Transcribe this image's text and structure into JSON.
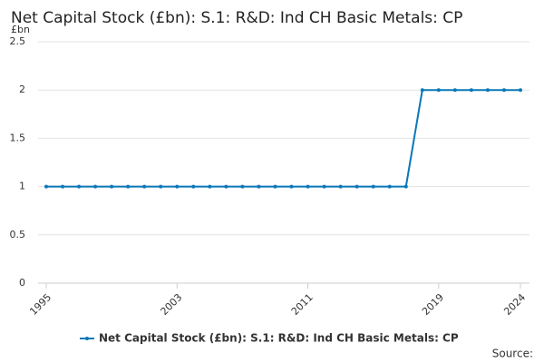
{
  "chart_data": {
    "type": "line",
    "title": "Net Capital Stock (£bn): S.1: R&D: Ind CH Basic Metals: CP",
    "y_label": "£bn",
    "source": "Source:",
    "x": [
      1995,
      1996,
      1997,
      1998,
      1999,
      2000,
      2001,
      2002,
      2003,
      2004,
      2005,
      2006,
      2007,
      2008,
      2009,
      2010,
      2011,
      2012,
      2013,
      2014,
      2015,
      2016,
      2017,
      2018,
      2019,
      2020,
      2021,
      2022,
      2023,
      2024
    ],
    "series": [
      {
        "name": "Net Capital Stock (£bn): S.1: R&D: Ind CH Basic Metals: CP",
        "color": "#0a78b8",
        "values": [
          1,
          1,
          1,
          1,
          1,
          1,
          1,
          1,
          1,
          1,
          1,
          1,
          1,
          1,
          1,
          1,
          1,
          1,
          1,
          1,
          1,
          1,
          1,
          2,
          2,
          2,
          2,
          2,
          2,
          2
        ]
      }
    ],
    "xlim": [
      1995,
      2024
    ],
    "xticks": [
      1995,
      2003,
      2011,
      2019,
      2024
    ],
    "ylim": [
      0,
      2.5
    ],
    "yticks": [
      0,
      0.5,
      1,
      1.5,
      2,
      2.5
    ],
    "grid": true
  }
}
